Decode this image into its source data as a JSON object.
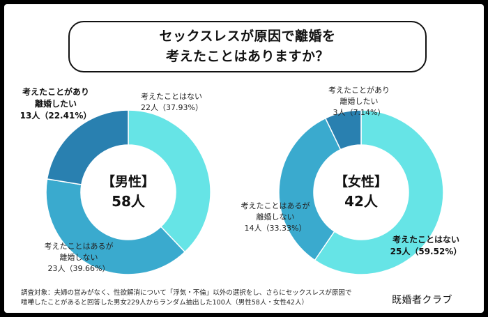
{
  "title": {
    "line1": "セックスレスが原因で離婚を",
    "line2": "考えたことはありますか？"
  },
  "colors": {
    "teal": "#66E4E6",
    "mid": "#3AAACE",
    "dark": "#2980B0"
  },
  "chart_data": [
    {
      "type": "pie",
      "title": "【男性】",
      "total_label": "58人",
      "slices": [
        {
          "name": "考えたことはない",
          "count_label": "22人（37.93%）",
          "count": 22,
          "percent": 37.93,
          "color": "#66E4E6",
          "lines": [
            "考えたことはない",
            "22人（37.93%）"
          ]
        },
        {
          "name": "考えたことはあるが離婚しない",
          "count_label": "23人（39.66%）",
          "count": 23,
          "percent": 39.66,
          "color": "#3AAACE",
          "lines": [
            "考えたことはあるが",
            "離婚しない",
            "23人（39.66%）"
          ]
        },
        {
          "name": "考えたことがあり離婚したい",
          "count_label": "13人（22.41%）",
          "count": 13,
          "percent": 22.41,
          "color": "#2980B0",
          "lines": [
            "考えたことがあり",
            "離婚したい",
            "13人（22.41%）"
          ]
        }
      ]
    },
    {
      "type": "pie",
      "title": "【女性】",
      "total_label": "42人",
      "slices": [
        {
          "name": "考えたことはない",
          "count_label": "25人（59.52%）",
          "count": 25,
          "percent": 59.52,
          "color": "#66E4E6",
          "lines": [
            "考えたことはない",
            "25人（59.52%）"
          ]
        },
        {
          "name": "考えたことはあるが離婚しない",
          "count_label": "14人（33.33%）",
          "count": 14,
          "percent": 33.33,
          "color": "#3AAACE",
          "lines": [
            "考えたことはあるが",
            "離婚しない",
            "14人（33.33%）"
          ]
        },
        {
          "name": "考えたことがあり離婚したい",
          "count_label": "3人（7.14%）",
          "count": 3,
          "percent": 7.14,
          "color": "#2980B0",
          "lines": [
            "考えたことがあり",
            "離婚したい",
            "3人（7.14%）"
          ]
        }
      ]
    }
  ],
  "footnote": {
    "line1": "調査対象：夫婦の営みがなく、性欲解消について「浮気・不倫」以外の選択をし、さらにセックスレスが原因で",
    "line2": "喧嘩したことがあると回答した男女229人からランダム抽出した100人（男性58人・女性42人）"
  },
  "brand": "既婚者クラブ"
}
